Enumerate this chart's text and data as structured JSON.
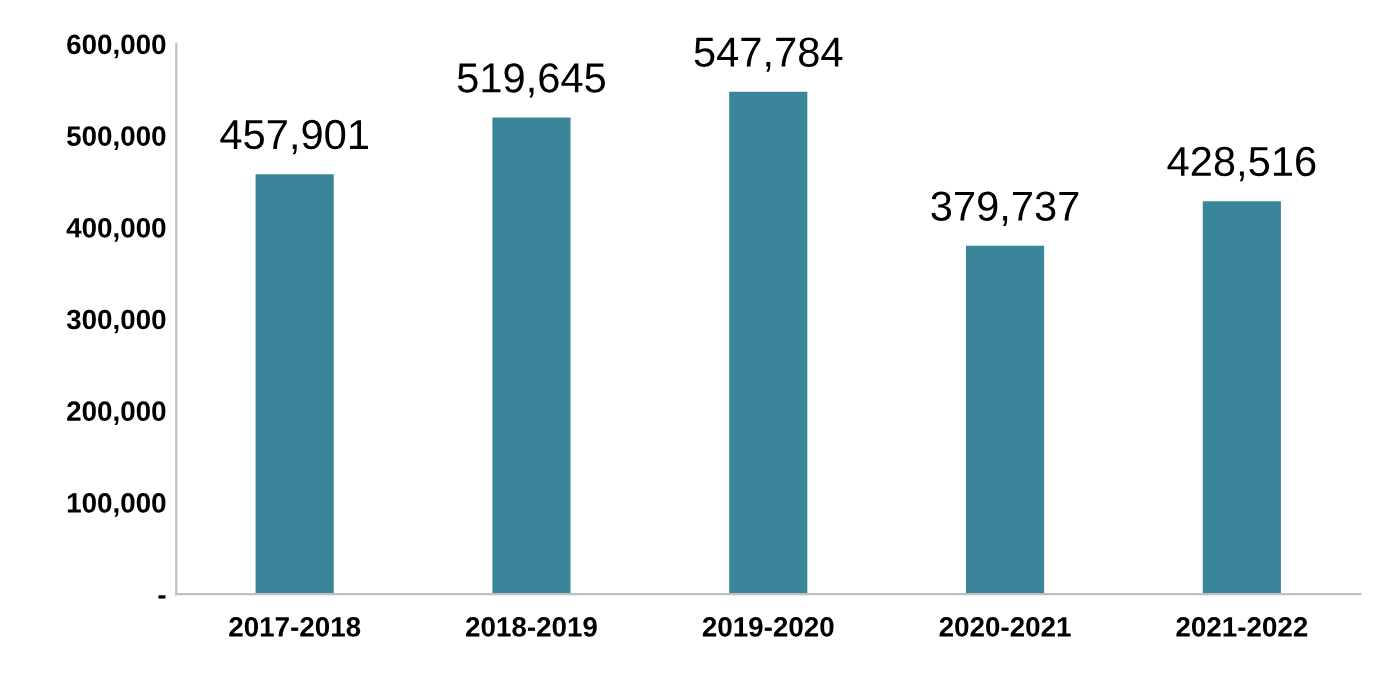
{
  "chart_data": {
    "type": "bar",
    "categories": [
      "2017-2018",
      "2018-2019",
      "2019-2020",
      "2020-2021",
      "2021-2022"
    ],
    "values": [
      457901,
      519645,
      547784,
      379737,
      428516
    ],
    "color": "#3a859a",
    "ylim": [
      0,
      600000
    ],
    "yticks": [
      {
        "value": 0,
        "label": "-"
      },
      {
        "value": 100000,
        "label": "100,000"
      },
      {
        "value": 200000,
        "label": "200,000"
      },
      {
        "value": 300000,
        "label": "300,000"
      },
      {
        "value": 400000,
        "label": "400,000"
      },
      {
        "value": 500000,
        "label": "500,000"
      },
      {
        "value": 600000,
        "label": "600,000"
      }
    ],
    "value_labels": [
      "457,901",
      "519,645",
      "547,784",
      "379,737",
      "428,516"
    ],
    "grid": false
  }
}
